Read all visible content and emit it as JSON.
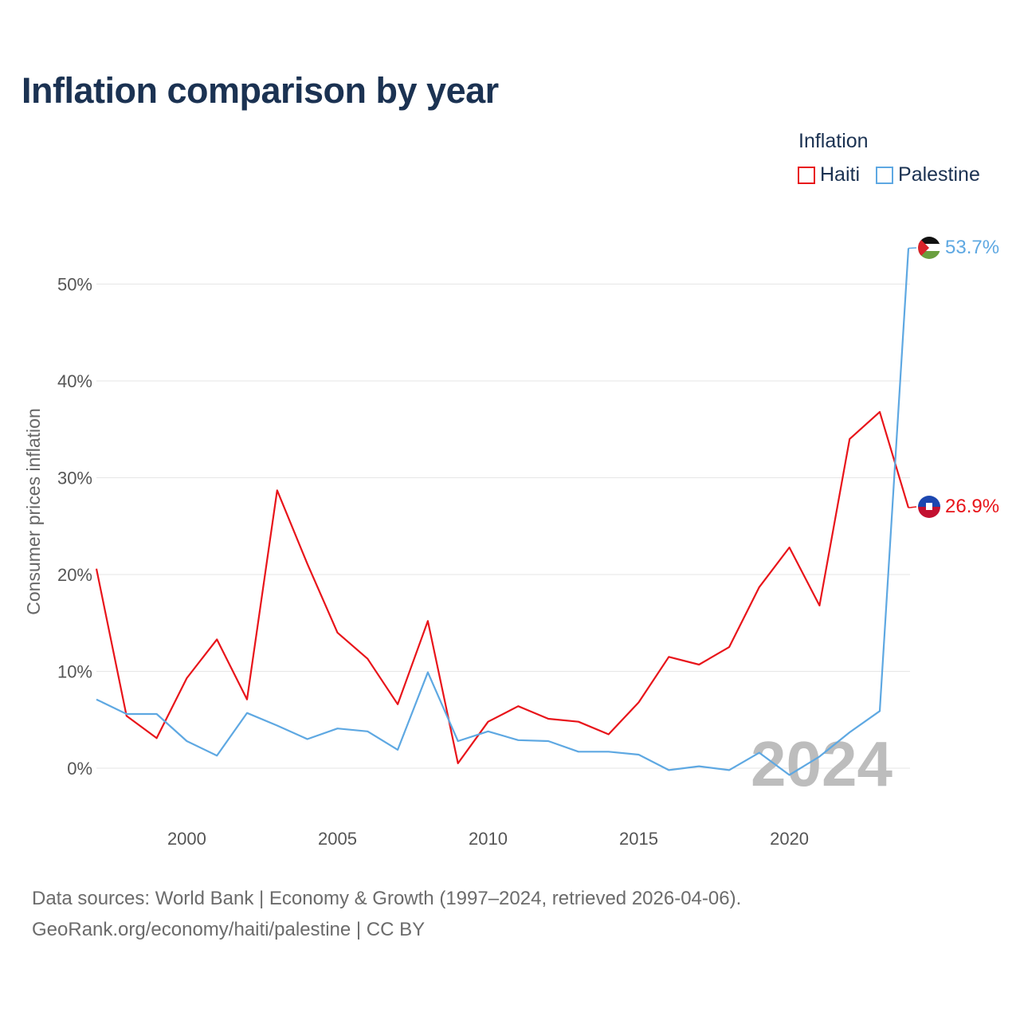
{
  "title": "Inflation comparison by year",
  "legend": {
    "title": "Inflation",
    "items": [
      {
        "name": "Haiti",
        "color": "#e8141a"
      },
      {
        "name": "Palestine",
        "color": "#5ea8e2"
      }
    ]
  },
  "source": {
    "line1": "Data sources: World Bank | Economy & Growth (1997–2024, retrieved 2026-04-06).",
    "line2": "GeoRank.org/economy/haiti/palestine | CC BY"
  },
  "chart_data": {
    "type": "line",
    "title": "Inflation comparison by year",
    "xlabel": "",
    "ylabel": "Consumer prices inflation",
    "x": [
      1997,
      1998,
      1999,
      2000,
      2001,
      2002,
      2003,
      2004,
      2005,
      2006,
      2007,
      2008,
      2009,
      2010,
      2011,
      2012,
      2013,
      2014,
      2015,
      2016,
      2017,
      2018,
      2019,
      2020,
      2021,
      2022,
      2023,
      2024
    ],
    "series": [
      {
        "name": "Haiti",
        "color": "#e8141a",
        "values": [
          20.6,
          5.4,
          3.1,
          9.3,
          13.3,
          7.1,
          28.7,
          21.1,
          14.0,
          11.3,
          6.6,
          15.2,
          0.5,
          4.8,
          6.4,
          5.1,
          4.8,
          3.5,
          6.8,
          11.5,
          10.7,
          12.5,
          18.7,
          22.8,
          16.8,
          34.0,
          36.8,
          26.9
        ],
        "end_label": "26.9%"
      },
      {
        "name": "Palestine",
        "color": "#5ea8e2",
        "values": [
          7.1,
          5.6,
          5.6,
          2.8,
          1.3,
          5.7,
          4.4,
          3.0,
          4.1,
          3.8,
          1.9,
          9.9,
          2.8,
          3.8,
          2.9,
          2.8,
          1.7,
          1.7,
          1.4,
          -0.2,
          0.2,
          -0.2,
          1.6,
          -0.7,
          1.2,
          3.7,
          5.9,
          53.7
        ],
        "end_label": "53.7%"
      }
    ],
    "xticks": [
      2000,
      2005,
      2010,
      2015,
      2020
    ],
    "xtick_labels": [
      "2000",
      "2005",
      "2010",
      "2015",
      "2020"
    ],
    "yticks": [
      0,
      10,
      20,
      30,
      40,
      50
    ],
    "ytick_labels": [
      "0%",
      "10%",
      "20%",
      "30%",
      "40%",
      "50%"
    ],
    "xlim": [
      1997,
      2024
    ],
    "ylim": [
      0,
      50
    ],
    "grid": true,
    "legend_position": "top-right",
    "year_watermark": "2024"
  }
}
